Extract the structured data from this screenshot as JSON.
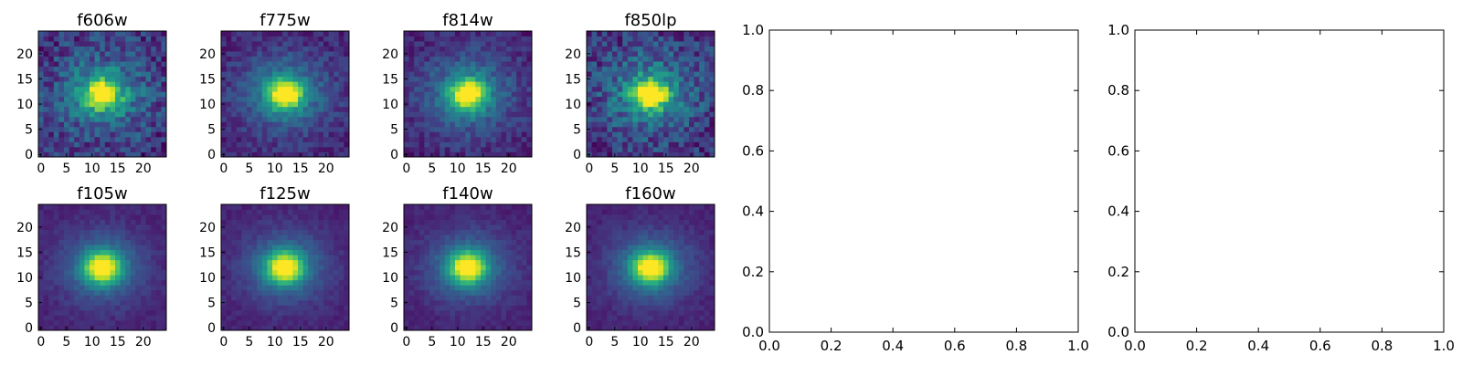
{
  "chart_data": [
    {
      "type": "heatmap",
      "title": "f606w",
      "xlim": [
        0,
        24
      ],
      "ylim": [
        0,
        24
      ],
      "xticks": [
        "0",
        "5",
        "10",
        "15",
        "20"
      ],
      "yticks": [
        "0",
        "5",
        "10",
        "15",
        "20"
      ],
      "center": [
        12,
        12
      ],
      "noise": "high",
      "colormap": "viridis"
    },
    {
      "type": "heatmap",
      "title": "f775w",
      "xlim": [
        0,
        24
      ],
      "ylim": [
        0,
        24
      ],
      "xticks": [
        "0",
        "5",
        "10",
        "15",
        "20"
      ],
      "yticks": [
        "0",
        "5",
        "10",
        "15",
        "20"
      ],
      "center": [
        12,
        12
      ],
      "noise": "medium",
      "colormap": "viridis"
    },
    {
      "type": "heatmap",
      "title": "f814w",
      "xlim": [
        0,
        24
      ],
      "ylim": [
        0,
        24
      ],
      "xticks": [
        "0",
        "5",
        "10",
        "15",
        "20"
      ],
      "yticks": [
        "0",
        "5",
        "10",
        "15",
        "20"
      ],
      "center": [
        12,
        12
      ],
      "noise": "medium",
      "colormap": "viridis"
    },
    {
      "type": "heatmap",
      "title": "f850lp",
      "xlim": [
        0,
        24
      ],
      "ylim": [
        0,
        24
      ],
      "xticks": [
        "0",
        "5",
        "10",
        "15",
        "20"
      ],
      "yticks": [
        "0",
        "5",
        "10",
        "15",
        "20"
      ],
      "center": [
        12,
        12
      ],
      "noise": "high",
      "colormap": "viridis"
    },
    {
      "type": "heatmap",
      "title": "f105w",
      "xlim": [
        0,
        24
      ],
      "ylim": [
        0,
        24
      ],
      "xticks": [
        "0",
        "5",
        "10",
        "15",
        "20"
      ],
      "yticks": [
        "0",
        "5",
        "10",
        "15",
        "20"
      ],
      "center": [
        12,
        12
      ],
      "noise": "low",
      "colormap": "viridis"
    },
    {
      "type": "heatmap",
      "title": "f125w",
      "xlim": [
        0,
        24
      ],
      "ylim": [
        0,
        24
      ],
      "xticks": [
        "0",
        "5",
        "10",
        "15",
        "20"
      ],
      "yticks": [
        "0",
        "5",
        "10",
        "15",
        "20"
      ],
      "center": [
        12,
        12
      ],
      "noise": "low",
      "colormap": "viridis"
    },
    {
      "type": "heatmap",
      "title": "f140w",
      "xlim": [
        0,
        24
      ],
      "ylim": [
        0,
        24
      ],
      "xticks": [
        "0",
        "5",
        "10",
        "15",
        "20"
      ],
      "yticks": [
        "0",
        "5",
        "10",
        "15",
        "20"
      ],
      "center": [
        12,
        12
      ],
      "noise": "low",
      "colormap": "viridis"
    },
    {
      "type": "heatmap",
      "title": "f160w",
      "xlim": [
        0,
        24
      ],
      "ylim": [
        0,
        24
      ],
      "xticks": [
        "0",
        "5",
        "10",
        "15",
        "20"
      ],
      "yticks": [
        "0",
        "5",
        "10",
        "15",
        "20"
      ],
      "center": [
        12,
        12
      ],
      "noise": "low",
      "colormap": "viridis"
    },
    {
      "type": "line",
      "title": "",
      "xlim": [
        0,
        1
      ],
      "ylim": [
        0,
        1
      ],
      "xticks": [
        "0.0",
        "0.2",
        "0.4",
        "0.6",
        "0.8",
        "1.0"
      ],
      "yticks": [
        "0.0",
        "0.2",
        "0.4",
        "0.6",
        "0.8",
        "1.0"
      ],
      "series": []
    },
    {
      "type": "line",
      "title": "",
      "xlim": [
        0,
        1
      ],
      "ylim": [
        0,
        1
      ],
      "xticks": [
        "0.0",
        "0.2",
        "0.4",
        "0.6",
        "0.8",
        "1.0"
      ],
      "yticks": [
        "0.0",
        "0.2",
        "0.4",
        "0.6",
        "0.8",
        "1.0"
      ],
      "series": []
    }
  ]
}
